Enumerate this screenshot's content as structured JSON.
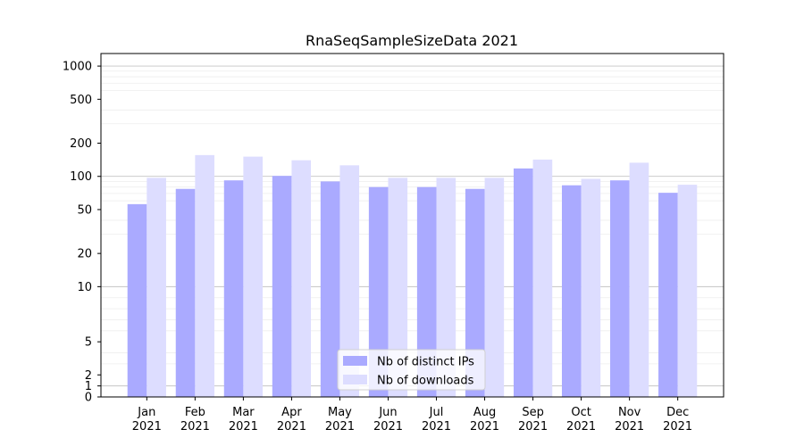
{
  "chart_data": {
    "type": "bar",
    "title": "RnaSeqSampleSizeData 2021",
    "xlabel": "",
    "ylabel": "",
    "y_scale": "symlog",
    "ylim": [
      0,
      1300
    ],
    "y_ticks": [
      0,
      1,
      2,
      5,
      10,
      20,
      50,
      100,
      200,
      500,
      1000
    ],
    "y_tick_labels": [
      "0",
      "1",
      "2",
      "5",
      "10",
      "20",
      "50",
      "100",
      "200",
      "500",
      "1000"
    ],
    "grid": "horizontal",
    "legend_position": "bottom-center",
    "categories": [
      "Jan\n2021",
      "Feb\n2021",
      "Mar\n2021",
      "Apr\n2021",
      "May\n2021",
      "Jun\n2021",
      "Jul\n2021",
      "Aug\n2021",
      "Sep\n2021",
      "Oct\n2021",
      "Nov\n2021",
      "Dec\n2021"
    ],
    "series": [
      {
        "name": "Nb of distinct IPs",
        "color": "#aaaaff",
        "values": [
          56,
          77,
          92,
          101,
          90,
          80,
          80,
          77,
          118,
          83,
          92,
          71
        ]
      },
      {
        "name": "Nb of downloads",
        "color": "#ddddff",
        "values": [
          97,
          156,
          151,
          140,
          126,
          97,
          97,
          97,
          142,
          95,
          133,
          84
        ]
      }
    ]
  }
}
